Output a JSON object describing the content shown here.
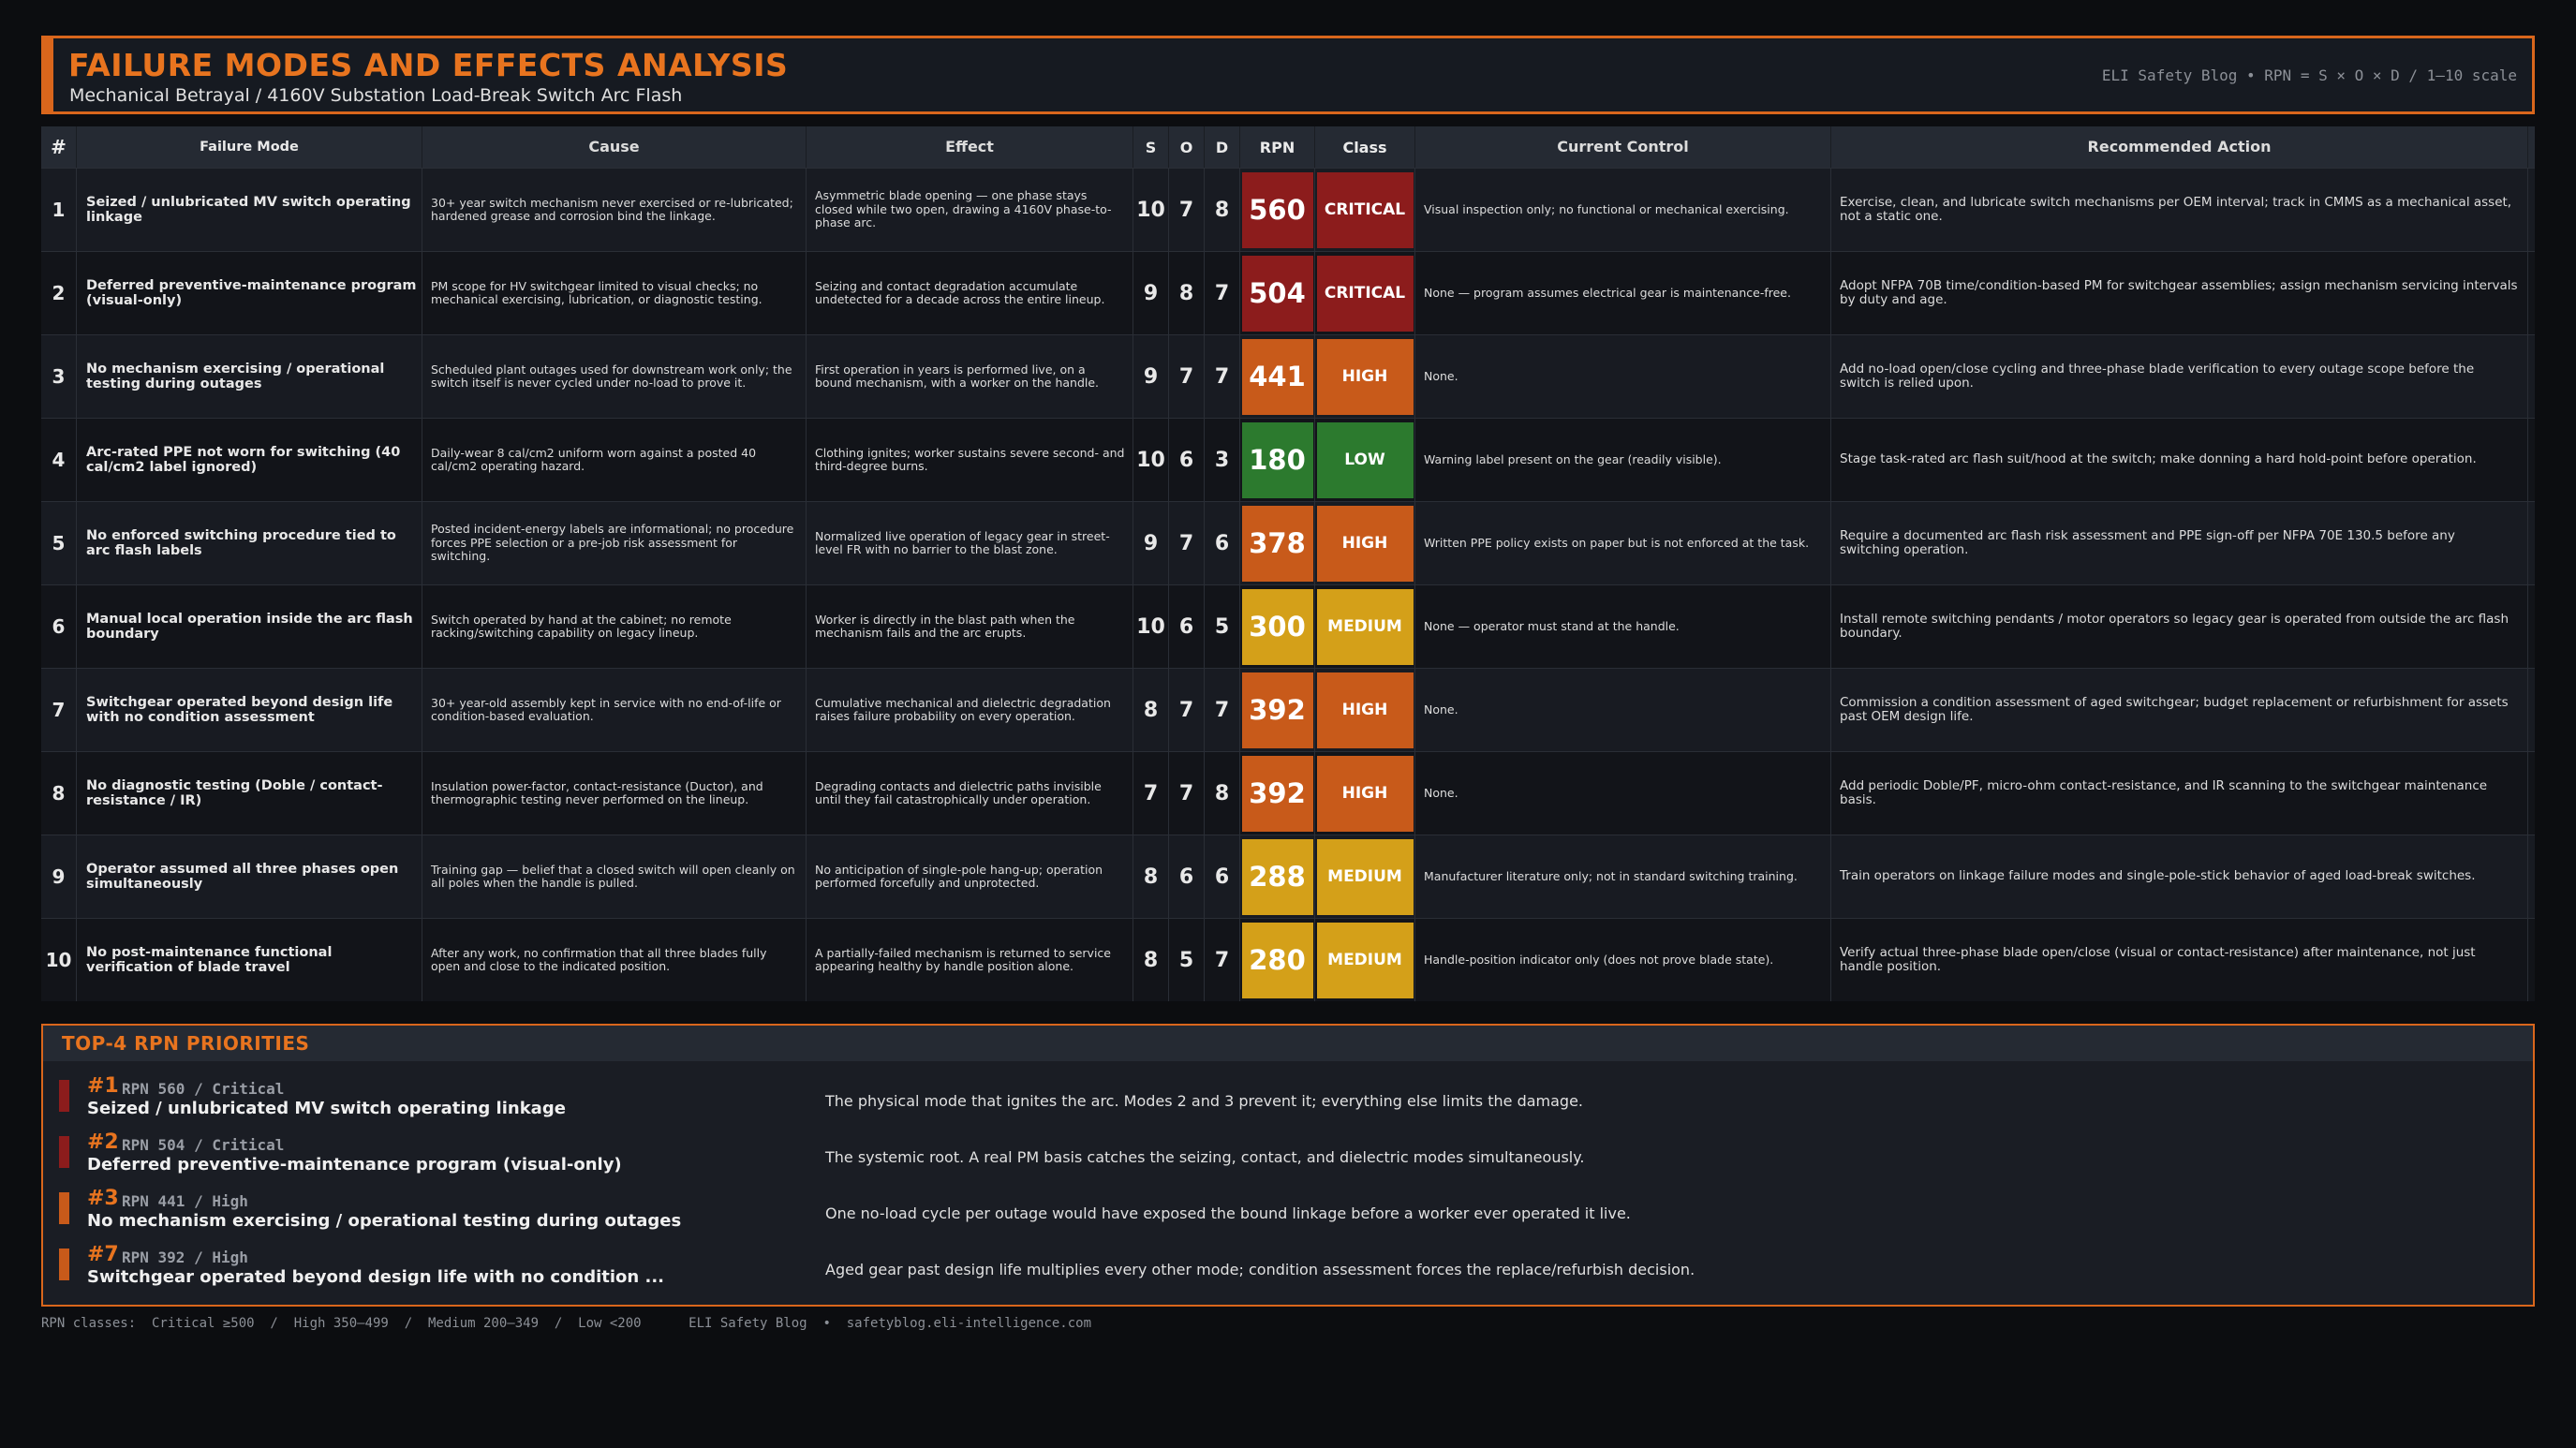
{
  "header": {
    "title": "FAILURE MODES AND EFFECTS ANALYSIS",
    "subtitle": "Mechanical Betrayal  /  4160V Substation Load-Break Switch Arc Flash",
    "meta": "ELI Safety Blog  •  RPN = S × O × D  /  1–10 scale"
  },
  "table": {
    "columns": [
      "#",
      "Failure Mode",
      "Cause",
      "Effect",
      "S",
      "O",
      "D",
      "RPN",
      "Class",
      "Current Control",
      "Recommended Action"
    ],
    "rows": [
      {
        "num": "1",
        "mode": "Seized / unlubricated MV switch operating linkage",
        "cause": "30+ year switch mechanism never exercised or re-lubricated; hardened grease and corrosion bind the linkage.",
        "effect": "Asymmetric blade opening — one phase stays closed while two open, drawing a 4160V phase-to-phase arc.",
        "s": "10",
        "o": "7",
        "d": "8",
        "rpn": "560",
        "class": "CRITICAL",
        "level": "critical",
        "control": "Visual inspection only; no functional or mechanical exercising.",
        "action": "Exercise, clean, and lubricate switch mechanisms per OEM interval; track in CMMS as a mechanical asset, not a static one."
      },
      {
        "num": "2",
        "mode": "Deferred preventive-maintenance program (visual-only)",
        "cause": "PM scope for HV switchgear limited to visual checks; no mechanical exercising, lubrication, or diagnostic testing.",
        "effect": "Seizing and contact degradation accumulate undetected for a decade across the entire lineup.",
        "s": "9",
        "o": "8",
        "d": "7",
        "rpn": "504",
        "class": "CRITICAL",
        "level": "critical",
        "control": "None — program assumes electrical gear is maintenance-free.",
        "action": "Adopt NFPA 70B time/condition-based PM for switchgear assemblies; assign mechanism servicing intervals by duty and age."
      },
      {
        "num": "3",
        "mode": "No mechanism exercising / operational testing during outages",
        "cause": "Scheduled plant outages used for downstream work only; the switch itself is never cycled under no-load to prove it.",
        "effect": "First operation in years is performed live, on a bound mechanism, with a worker on the handle.",
        "s": "9",
        "o": "7",
        "d": "7",
        "rpn": "441",
        "class": "HIGH",
        "level": "high",
        "control": "None.",
        "action": "Add no-load open/close cycling and three-phase blade verification to every outage scope before the switch is relied upon."
      },
      {
        "num": "4",
        "mode": "Arc-rated PPE not worn for switching (40 cal/cm2 label ignored)",
        "cause": "Daily-wear 8 cal/cm2 uniform worn against a posted 40 cal/cm2 operating hazard.",
        "effect": "Clothing ignites; worker sustains severe second- and third-degree burns.",
        "s": "10",
        "o": "6",
        "d": "3",
        "rpn": "180",
        "class": "LOW",
        "level": "low",
        "control": "Warning label present on the gear (readily visible).",
        "action": "Stage task-rated arc flash suit/hood at the switch; make donning a hard hold-point before operation."
      },
      {
        "num": "5",
        "mode": "No enforced switching procedure tied to arc flash labels",
        "cause": "Posted incident-energy labels are informational; no procedure forces PPE selection or a pre-job risk assessment for switching.",
        "effect": "Normalized live operation of legacy gear in street-level FR with no barrier to the blast zone.",
        "s": "9",
        "o": "7",
        "d": "6",
        "rpn": "378",
        "class": "HIGH",
        "level": "high",
        "control": "Written PPE policy exists on paper but is not enforced at the task.",
        "action": "Require a documented arc flash risk assessment and PPE sign-off per NFPA 70E 130.5 before any switching operation."
      },
      {
        "num": "6",
        "mode": "Manual local operation inside the arc flash boundary",
        "cause": "Switch operated by hand at the cabinet; no remote racking/switching capability on legacy lineup.",
        "effect": "Worker is directly in the blast path when the mechanism fails and the arc erupts.",
        "s": "10",
        "o": "6",
        "d": "5",
        "rpn": "300",
        "class": "MEDIUM",
        "level": "medium",
        "control": "None — operator must stand at the handle.",
        "action": "Install remote switching pendants / motor operators so legacy gear is operated from outside the arc flash boundary."
      },
      {
        "num": "7",
        "mode": "Switchgear operated beyond design life with no condition assessment",
        "cause": "30+ year-old assembly kept in service with no end-of-life or condition-based evaluation.",
        "effect": "Cumulative mechanical and dielectric degradation raises failure probability on every operation.",
        "s": "8",
        "o": "7",
        "d": "7",
        "rpn": "392",
        "class": "HIGH",
        "level": "high",
        "control": "None.",
        "action": "Commission a condition assessment of aged switchgear; budget replacement or refurbishment for assets past OEM design life."
      },
      {
        "num": "8",
        "mode": "No diagnostic testing (Doble / contact-resistance / IR)",
        "cause": "Insulation power-factor, contact-resistance (Ductor), and thermographic testing never performed on the lineup.",
        "effect": "Degrading contacts and dielectric paths invisible until they fail catastrophically under operation.",
        "s": "7",
        "o": "7",
        "d": "8",
        "rpn": "392",
        "class": "HIGH",
        "level": "high",
        "control": "None.",
        "action": "Add periodic Doble/PF, micro-ohm contact-resistance, and IR scanning to the switchgear maintenance basis."
      },
      {
        "num": "9",
        "mode": "Operator assumed all three phases open simultaneously",
        "cause": "Training gap — belief that a closed switch will open cleanly on all poles when the handle is pulled.",
        "effect": "No anticipation of single-pole hang-up; operation performed forcefully and unprotected.",
        "s": "8",
        "o": "6",
        "d": "6",
        "rpn": "288",
        "class": "MEDIUM",
        "level": "medium",
        "control": "Manufacturer literature only; not in standard switching training.",
        "action": "Train operators on linkage failure modes and single-pole-stick behavior of aged load-break switches."
      },
      {
        "num": "10",
        "mode": "No post-maintenance functional verification of blade travel",
        "cause": "After any work, no confirmation that all three blades fully open and close to the indicated position.",
        "effect": "A partially-failed mechanism is returned to service appearing healthy by handle position alone.",
        "s": "8",
        "o": "5",
        "d": "7",
        "rpn": "280",
        "class": "MEDIUM",
        "level": "medium",
        "control": "Handle-position indicator only (does not prove blade state).",
        "action": "Verify actual three-phase blade open/close (visual or contact-resistance) after maintenance, not just handle position."
      }
    ]
  },
  "priorities": {
    "title": "TOP-4 RPN PRIORITIES",
    "items": [
      {
        "rank": "#1",
        "meta": "RPN 560  /  Critical",
        "name": "Seized / unlubricated MV switch operating linkage",
        "desc": "The physical mode that ignites the arc. Modes 2 and 3 prevent it; everything else limits the damage.",
        "level": "critical"
      },
      {
        "rank": "#2",
        "meta": "RPN 504  /  Critical",
        "name": "Deferred preventive-maintenance program (visual-only)",
        "desc": "The systemic root. A real PM basis catches the seizing, contact, and dielectric modes simultaneously.",
        "level": "critical"
      },
      {
        "rank": "#3",
        "meta": "RPN 441  /  High",
        "name": "No mechanism exercising / operational testing during outages",
        "desc": "One no-load cycle per outage would have exposed the bound linkage before a worker ever operated it live.",
        "level": "high"
      },
      {
        "rank": "#7",
        "meta": "RPN 392  /  High",
        "name": "Switchgear operated beyond design life with no condition ...",
        "desc": "Aged gear past design life multiplies every other mode; condition assessment forces the replace/refurbish decision.",
        "level": "high"
      }
    ]
  },
  "footer": {
    "text": "RPN classes:  Critical ≥500  /  High 350–499  /  Medium 200–349  /  Low <200      ELI Safety Blog  •  safetyblog.eli-intelligence.com"
  },
  "colors": {
    "accent": "#d9661c",
    "critical": "#8c1c1c",
    "high": "#c85a1a",
    "medium": "#d4a019",
    "low": "#2c7a2e"
  }
}
